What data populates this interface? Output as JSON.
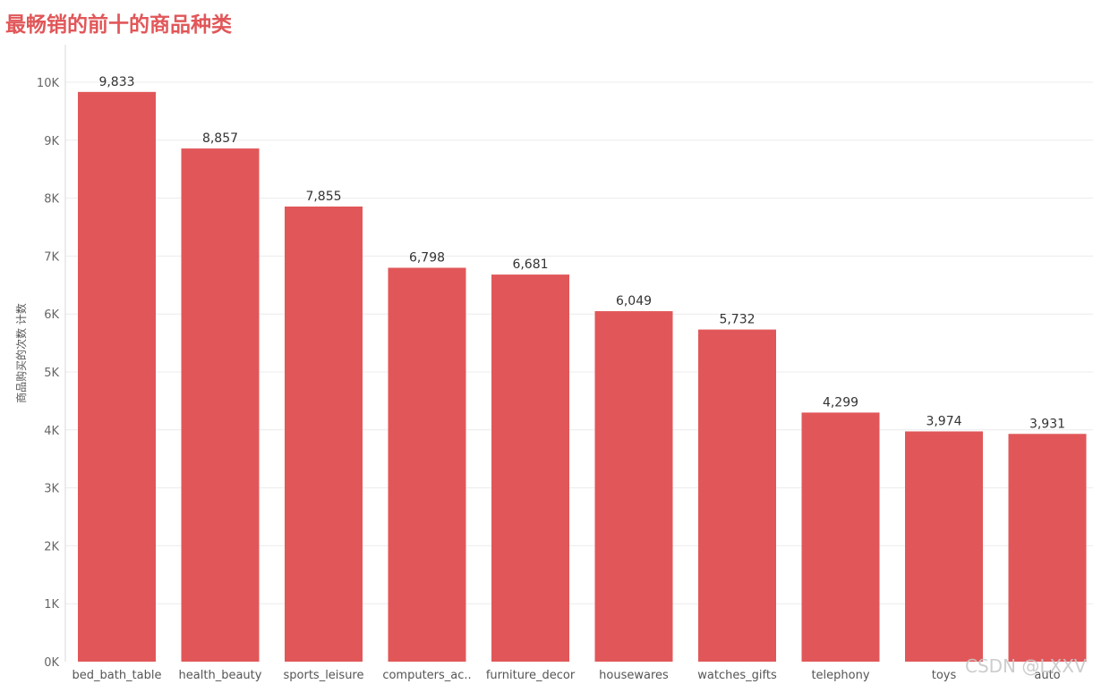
{
  "chart_data": {
    "type": "bar",
    "title": "最畅销的前十的商品种类",
    "ylabel": "商品购买的次数 计数",
    "xlabel": "",
    "categories": [
      "bed_bath_table",
      "health_beauty",
      "sports_leisure",
      "computers_ac..",
      "furniture_decor",
      "housewares",
      "watches_gifts",
      "telephony",
      "toys",
      "auto"
    ],
    "values": [
      9833,
      8857,
      7855,
      6798,
      6681,
      6049,
      5732,
      4299,
      3974,
      3931
    ],
    "data_labels": [
      "9,833",
      "8,857",
      "7,855",
      "6,798",
      "6,681",
      "6,049",
      "5,732",
      "4,299",
      "3,974",
      "3,931"
    ],
    "y_ticks": [
      "0K",
      "1K",
      "2K",
      "3K",
      "4K",
      "5K",
      "6K",
      "7K",
      "8K",
      "9K",
      "10K"
    ],
    "ylim": [
      0,
      10000
    ],
    "grid": true,
    "bar_color": "#E15759",
    "title_color": "#E15759"
  },
  "watermark": "CSDN @LXXV"
}
